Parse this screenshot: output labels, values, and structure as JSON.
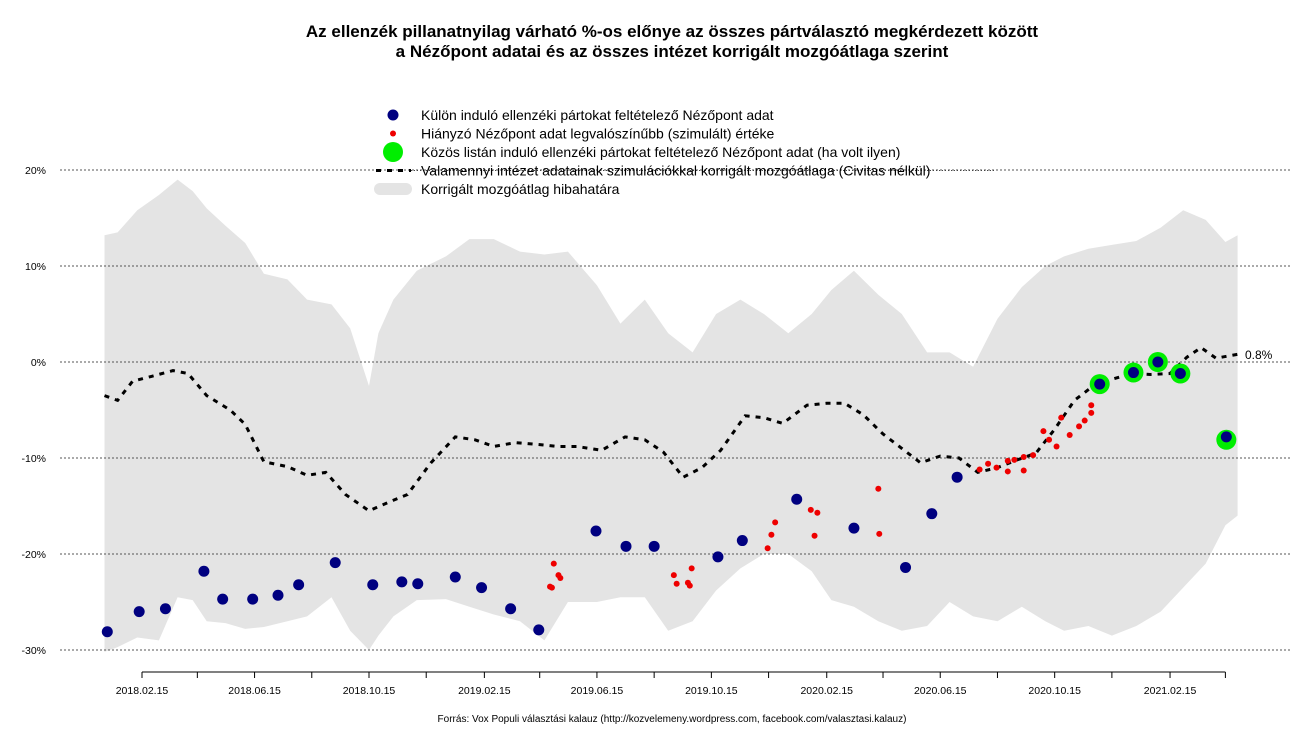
{
  "chart_data": {
    "type": "scatter",
    "title": "Az ellenzék pillanatnyilag várható %-os előnye az összes pártválasztó megkérdezett között",
    "subtitle": "a Nézőpont adatai és az összes intézet korrigált mozgóátlaga szerint",
    "xlabel": "",
    "ylabel": "",
    "source": "Forrás: Vox Populi választási kalauz (http://kozvelemeny.wordpress.com, facebook.com/valasztasi.kalauz)",
    "ylim": [
      -30,
      20
    ],
    "yticks": [
      20,
      10,
      0,
      -10,
      -20,
      -30
    ],
    "ytick_labels": [
      "20%",
      "10%",
      "0%",
      "-10%",
      "-20%",
      "-30%"
    ],
    "xlim": [
      "2018-01-06",
      "2021-04-28"
    ],
    "xticks_major": [
      "2018-02-15",
      "2018-06-15",
      "2018-10-15",
      "2019-02-15",
      "2019-06-15",
      "2019-10-15",
      "2020-02-15",
      "2020-06-15",
      "2020-10-15",
      "2021-02-15"
    ],
    "xtick_labels": [
      "2018.02.15",
      "2018.06.15",
      "2018.10.15",
      "2019.02.15",
      "2019.06.15",
      "2019.10.15",
      "2020.02.15",
      "2020.06.15",
      "2020.10.15",
      "2021.02.15"
    ],
    "xticks_minor": [
      "2018-04-15",
      "2018-08-15",
      "2018-12-15",
      "2019-04-15",
      "2019-08-15",
      "2019-12-15",
      "2020-04-15",
      "2020-08-15",
      "2020-12-15",
      "2021-04-15"
    ],
    "grid": "horizontal dotted",
    "legend_position": "top-center",
    "legend": [
      {
        "label": "Külön induló ellenzéki pártokat feltételező Nézőpont adat",
        "symbol": "navy-dot"
      },
      {
        "label": "Hiányzó Nézőpont adat legvalószínűbb (szimulált) értéke",
        "symbol": "red-small-dot"
      },
      {
        "label": "Közös listán induló ellenzéki pártokat feltételező Nézőpont adat (ha volt ilyen)",
        "symbol": "green-large-dot"
      },
      {
        "label": "Valamennyi intézet adatainak szimulációkkal korrigált mozgóátlaga (Civitas nélkül)",
        "symbol": "black-dashed-line"
      },
      {
        "label": "Korrigált mozgóátlag hibahatára",
        "symbol": "grey-band"
      }
    ],
    "end_label": "0.8%",
    "colors": {
      "separate": "#000080",
      "simulated": "#ee0000",
      "joint": "#00ee00",
      "average": "#000000",
      "band": "#e4e4e4",
      "grid": "#555555"
    },
    "series": [
      {
        "name": "Külön induló ellenzéki pártokat feltételező Nézőpont adat",
        "kind": "points",
        "x": [
          "2018-01-09",
          "2018-02-12",
          "2018-03-12",
          "2018-04-22",
          "2018-05-12",
          "2018-06-13",
          "2018-07-10",
          "2018-08-01",
          "2018-09-09",
          "2018-10-19",
          "2018-11-19",
          "2018-12-06",
          "2019-01-15",
          "2019-02-12",
          "2019-03-15",
          "2019-04-14",
          "2019-06-14",
          "2019-07-16",
          "2019-08-15",
          "2019-10-22",
          "2019-11-17",
          "2020-01-14",
          "2020-03-15",
          "2020-05-09",
          "2020-06-06",
          "2020-07-03",
          "2020-12-02",
          "2021-01-07",
          "2021-02-02",
          "2021-02-26",
          "2021-04-16"
        ],
        "y": [
          -28.1,
          -26.0,
          -25.7,
          -21.8,
          -24.7,
          -24.7,
          -24.3,
          -23.2,
          -20.9,
          -23.2,
          -22.9,
          -23.1,
          -22.4,
          -23.5,
          -25.7,
          -27.9,
          -17.6,
          -19.2,
          -19.2,
          -20.3,
          -18.6,
          -14.3,
          -17.3,
          -21.4,
          -15.8,
          -12.0,
          -2.3,
          -1.1,
          0.0,
          -1.2,
          -7.8
        ]
      },
      {
        "name": "Hiányzó Nézőpont adat legvalószínűbb (szimulált) értéke",
        "kind": "points",
        "x": [
          "2019-04-26",
          "2019-04-28",
          "2019-04-30",
          "2019-05-05",
          "2019-05-07",
          "2019-09-05",
          "2019-09-08",
          "2019-09-20",
          "2019-09-22",
          "2019-09-24",
          "2019-12-14",
          "2019-12-18",
          "2019-12-22",
          "2020-01-29",
          "2020-02-05",
          "2020-02-02",
          "2020-04-10",
          "2020-04-11",
          "2020-07-27",
          "2020-08-05",
          "2020-08-14",
          "2020-08-26",
          "2020-08-26",
          "2020-09-02",
          "2020-09-12",
          "2020-09-12",
          "2020-09-22",
          "2020-10-03",
          "2020-10-09",
          "2020-10-17",
          "2020-10-22",
          "2020-10-31",
          "2020-11-10",
          "2020-11-16",
          "2020-11-23",
          "2020-11-23"
        ],
        "y": [
          -23.4,
          -23.5,
          -21.0,
          -22.2,
          -22.5,
          -22.2,
          -23.1,
          -23.0,
          -23.3,
          -21.5,
          -19.4,
          -18.0,
          -16.7,
          -15.4,
          -15.7,
          -18.1,
          -13.2,
          -17.9,
          -11.2,
          -10.6,
          -11.0,
          -11.4,
          -10.3,
          -10.2,
          -9.9,
          -11.3,
          -9.7,
          -7.2,
          -8.1,
          -8.8,
          -5.8,
          -7.6,
          -6.7,
          -6.1,
          -5.3,
          -4.5
        ]
      },
      {
        "name": "Közös listán induló ellenzéki pártokat feltételező Nézőpont adat (ha volt ilyen)",
        "kind": "points",
        "x": [
          "2020-12-02",
          "2021-01-07",
          "2021-02-02",
          "2021-02-26",
          "2021-04-16"
        ],
        "y": [
          -2.3,
          -1.1,
          0.0,
          -1.2,
          -8.1
        ]
      },
      {
        "name": "Valamennyi intézet adatainak szimulációkkal korrigált mozgóátlaga (Civitas nélkül)",
        "kind": "line",
        "x": [
          "2018-01-06",
          "2018-01-20",
          "2018-02-05",
          "2018-02-25",
          "2018-03-20",
          "2018-04-05",
          "2018-04-25",
          "2018-05-20",
          "2018-06-05",
          "2018-06-25",
          "2018-07-20",
          "2018-08-10",
          "2018-08-30",
          "2018-09-20",
          "2018-10-15",
          "2018-11-05",
          "2018-11-25",
          "2018-12-20",
          "2019-01-15",
          "2019-02-05",
          "2019-02-25",
          "2019-03-20",
          "2019-04-15",
          "2019-05-05",
          "2019-05-25",
          "2019-06-20",
          "2019-07-15",
          "2019-08-05",
          "2019-08-25",
          "2019-09-15",
          "2019-10-05",
          "2019-10-25",
          "2019-11-20",
          "2019-12-10",
          "2019-12-30",
          "2020-01-25",
          "2020-02-15",
          "2020-03-05",
          "2020-03-25",
          "2020-04-15",
          "2020-05-05",
          "2020-05-25",
          "2020-06-15",
          "2020-07-05",
          "2020-07-25",
          "2020-08-15",
          "2020-09-05",
          "2020-09-25",
          "2020-10-15",
          "2020-11-05",
          "2020-11-25",
          "2020-12-15",
          "2021-01-05",
          "2021-01-25",
          "2021-02-15",
          "2021-03-05",
          "2021-03-20",
          "2021-04-05",
          "2021-04-28"
        ],
        "y": [
          -3.5,
          -4.0,
          -2.0,
          -1.5,
          -0.9,
          -1.2,
          -3.5,
          -5.0,
          -6.5,
          -10.4,
          -10.9,
          -11.8,
          -11.5,
          -13.8,
          -15.5,
          -14.6,
          -13.8,
          -10.5,
          -7.8,
          -8.1,
          -8.8,
          -8.4,
          -8.6,
          -8.8,
          -8.8,
          -9.2,
          -7.8,
          -8.1,
          -9.4,
          -12.0,
          -11.0,
          -9.2,
          -5.6,
          -5.8,
          -6.4,
          -4.5,
          -4.3,
          -4.3,
          -5.5,
          -7.5,
          -9.0,
          -10.5,
          -9.8,
          -10.0,
          -11.5,
          -11.0,
          -10.2,
          -9.5,
          -7.0,
          -4.0,
          -2.5,
          -1.8,
          -1.2,
          -1.3,
          -1.2,
          0.5,
          1.5,
          0.4,
          0.8
        ]
      },
      {
        "name": "Korrigált mozgóátlag hibahatára",
        "kind": "band",
        "x": [
          "2018-01-06",
          "2018-01-20",
          "2018-02-10",
          "2018-03-05",
          "2018-03-25",
          "2018-04-10",
          "2018-04-25",
          "2018-05-15",
          "2018-06-05",
          "2018-06-25",
          "2018-07-20",
          "2018-08-10",
          "2018-09-05",
          "2018-09-25",
          "2018-10-15",
          "2018-10-25",
          "2018-11-10",
          "2018-12-05",
          "2019-01-05",
          "2019-01-30",
          "2019-02-25",
          "2019-03-25",
          "2019-04-20",
          "2019-05-15",
          "2019-06-15",
          "2019-07-10",
          "2019-08-05",
          "2019-08-30",
          "2019-09-25",
          "2019-10-20",
          "2019-11-15",
          "2019-12-10",
          "2020-01-05",
          "2020-01-30",
          "2020-02-20",
          "2020-03-15",
          "2020-04-10",
          "2020-05-05",
          "2020-06-01",
          "2020-06-25",
          "2020-07-20",
          "2020-08-15",
          "2020-09-10",
          "2020-10-05",
          "2020-10-25",
          "2020-11-20",
          "2020-12-15",
          "2021-01-10",
          "2021-02-05",
          "2021-03-01",
          "2021-03-25",
          "2021-04-15",
          "2021-04-28"
        ],
        "upper": [
          13.2,
          13.5,
          15.8,
          17.4,
          19.0,
          17.8,
          16.0,
          14.2,
          12.4,
          9.2,
          8.6,
          6.5,
          6.0,
          3.5,
          -2.5,
          3.0,
          6.5,
          9.5,
          11.0,
          12.8,
          12.8,
          11.5,
          11.2,
          11.5,
          8.0,
          4.0,
          6.5,
          3.0,
          1.0,
          5.0,
          6.5,
          5.0,
          3.0,
          5.0,
          7.5,
          9.5,
          7.0,
          5.0,
          1.0,
          1.0,
          -0.5,
          4.5,
          7.8,
          10.0,
          11.0,
          11.8,
          12.2,
          12.6,
          14.0,
          15.8,
          14.8,
          12.5,
          13.2
        ],
        "lower": [
          -30.2,
          -29.7,
          -28.7,
          -29.0,
          -24.5,
          -24.8,
          -27.0,
          -27.2,
          -27.8,
          -27.6,
          -27.0,
          -26.5,
          -24.5,
          -28.0,
          -30.0,
          -28.5,
          -26.5,
          -24.8,
          -24.7,
          -25.5,
          -26.3,
          -27.0,
          -29.0,
          -25.0,
          -25.0,
          -24.5,
          -24.5,
          -28.0,
          -27.0,
          -23.8,
          -21.5,
          -20.0,
          -20.0,
          -21.8,
          -24.8,
          -25.5,
          -27.0,
          -28.0,
          -27.5,
          -25.0,
          -26.5,
          -27.0,
          -25.5,
          -27.0,
          -28.0,
          -27.5,
          -28.5,
          -27.5,
          -26.0,
          -23.5,
          -21.0,
          -17.0,
          -16.0
        ]
      }
    ]
  }
}
